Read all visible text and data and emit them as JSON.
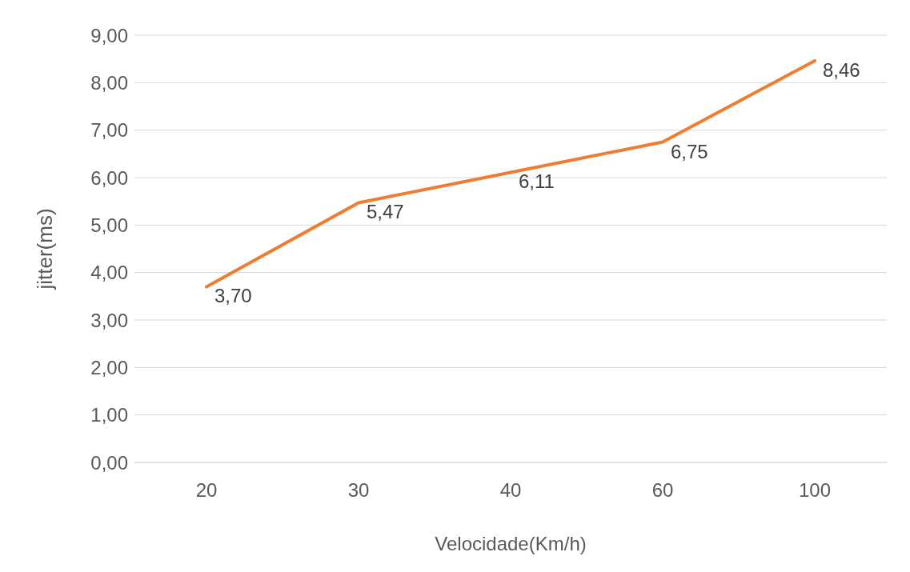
{
  "chart_data": {
    "type": "line",
    "xlabel": "Velocidade(Km/h)",
    "ylabel": "jitter(ms)",
    "categories": [
      "20",
      "30",
      "40",
      "60",
      "100"
    ],
    "series": [
      {
        "color": "#ed7d31",
        "values": [
          3.7,
          5.47,
          6.11,
          6.75,
          8.46
        ],
        "value_labels": [
          "3,70",
          "5,47",
          "6,11",
          "6,75",
          "8,46"
        ]
      }
    ],
    "ylim": [
      0,
      9
    ],
    "yticks": [
      {
        "value": 0,
        "label": "0,00"
      },
      {
        "value": 1,
        "label": "1,00"
      },
      {
        "value": 2,
        "label": "2,00"
      },
      {
        "value": 3,
        "label": "3,00"
      },
      {
        "value": 4,
        "label": "4,00"
      },
      {
        "value": 5,
        "label": "5,00"
      },
      {
        "value": 6,
        "label": "6,00"
      },
      {
        "value": 7,
        "label": "7,00"
      },
      {
        "value": 8,
        "label": "8,00"
      },
      {
        "value": 9,
        "label": "9,00"
      }
    ],
    "grid": "y",
    "marker": "none",
    "line_style": "solid",
    "legend": false
  }
}
